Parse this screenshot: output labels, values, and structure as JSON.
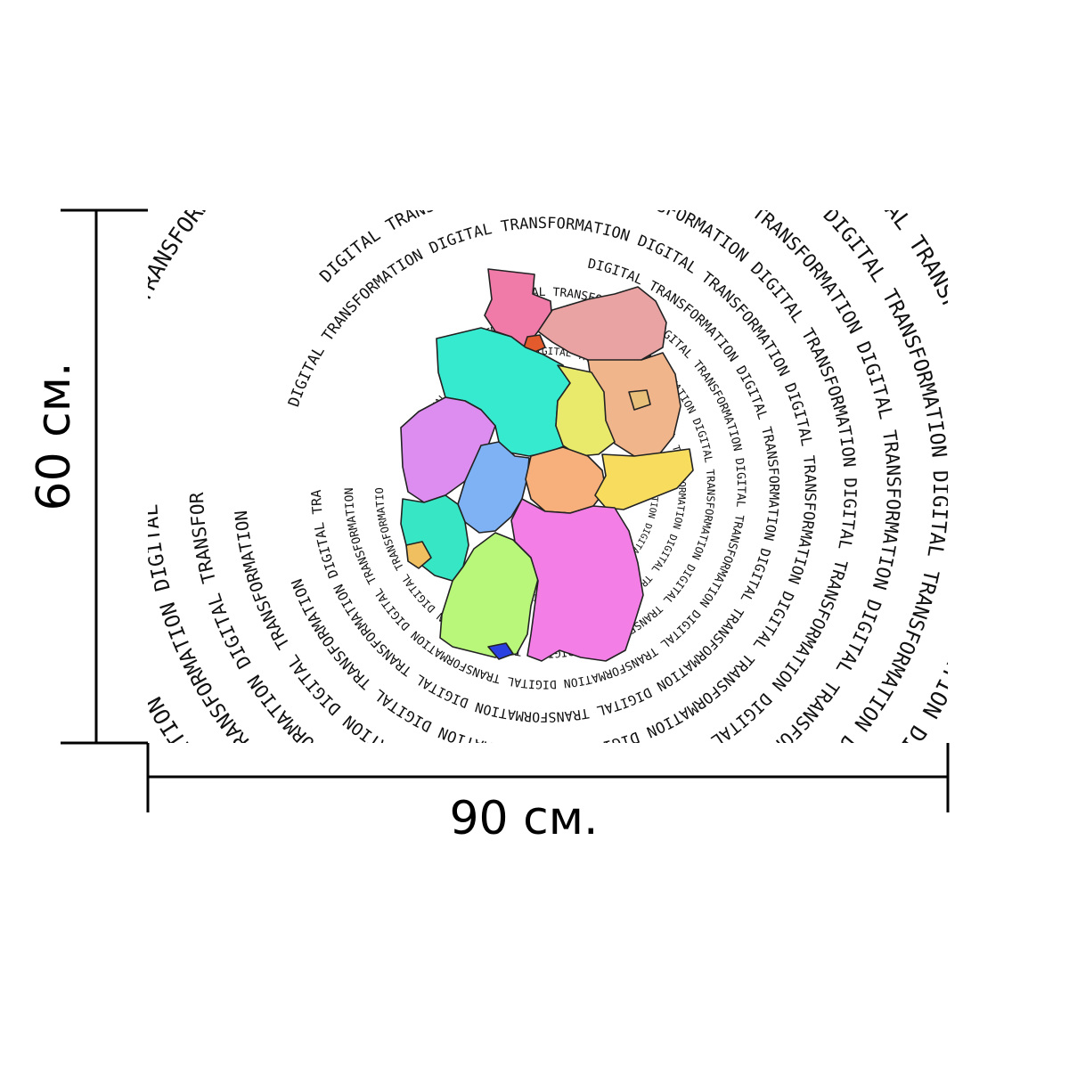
{
  "dimensions": {
    "height_label": "60 см.",
    "width_label": "90 см."
  },
  "artwork": {
    "ring_phrase": "DIGITAL TRANSFORMATION",
    "map_region": "germany-map",
    "state_colors": {
      "schleswig-holstein": "#f07aa8",
      "mecklenburg-vorpommern": "#e9a3a3",
      "hamburg": "#e35a2c",
      "bremen": "#f2d23a",
      "niedersachsen": "#36ead0",
      "berlin": "#e9c07a",
      "brandenburg": "#f1b58c",
      "sachsen-anhalt": "#e9ea6b",
      "nordrhein-westfalen": "#dd8cf0",
      "hessen": "#7fb2f5",
      "thueringen": "#f7b07b",
      "sachsen": "#f7dc5e",
      "rheinland-pfalz": "#36e6c4",
      "saarland": "#f0c060",
      "baden-wuerttemberg": "#b9f77a",
      "bayern": "#f37ee6",
      "bodensee": "#2a40e0"
    }
  }
}
